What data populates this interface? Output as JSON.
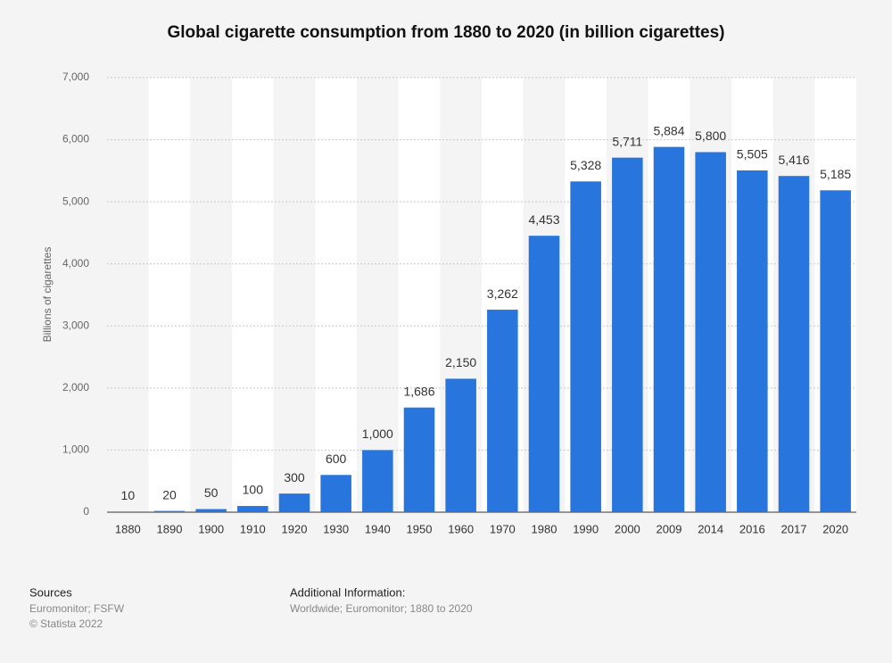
{
  "chart_data": {
    "type": "bar",
    "title": "Global cigarette consumption from 1880 to 2020 (in billion cigarettes)",
    "y_label": "Billions of cigarettes",
    "categories": [
      "1880",
      "1890",
      "1900",
      "1910",
      "1920",
      "1930",
      "1940",
      "1950",
      "1960",
      "1970",
      "1980",
      "1990",
      "2000",
      "2009",
      "2014",
      "2016",
      "2017",
      "2020"
    ],
    "values": [
      10,
      20,
      50,
      100,
      300,
      600,
      1000,
      1686,
      2150,
      3262,
      4453,
      5328,
      5711,
      5884,
      5800,
      5505,
      5416,
      5185
    ],
    "value_labels": [
      "10",
      "20",
      "50",
      "100",
      "300",
      "600",
      "1,000",
      "1,686",
      "2,150",
      "3,262",
      "4,453",
      "5,328",
      "5,711",
      "5,884",
      "5,800",
      "5,505",
      "5,416",
      "5,185"
    ],
    "color": "#2876dd",
    "ylim": [
      0,
      7000
    ],
    "yticks": [
      0,
      {
        "value": 1000,
        "label": "1,000"
      },
      {
        "value": 2000,
        "label": "2,000"
      },
      {
        "value": 3000,
        "label": "3,000"
      },
      {
        "value": 4000,
        "label": "4,000"
      },
      {
        "value": 5000,
        "label": "5,000"
      },
      {
        "value": 6000,
        "label": "6,000"
      },
      {
        "value": 7000,
        "label": "7,000"
      }
    ],
    "grid": true
  },
  "footer": {
    "sources_title": "Sources",
    "sources": "Euromonitor; FSFW",
    "copyright": "© Statista 2022",
    "info_title": "Additional Information:",
    "info": "Worldwide; Euromonitor; 1880 to 2020"
  }
}
